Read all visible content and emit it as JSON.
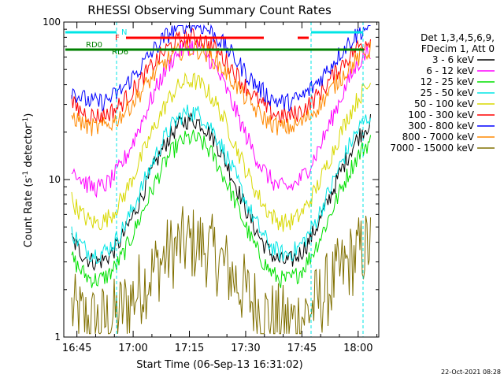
{
  "chart_data": {
    "type": "line",
    "title": "RHESSI Observing Summary Count Rates",
    "xlabel": "Start Time (06-Sep-13 16:31:02)",
    "ylabel": "Count Rate (s",
    "ylabel_sup": "-1",
    "ylabel_tail": " detector",
    "ylabel_sup2": "-1",
    "ylabel_close": ")",
    "y_scale": "log",
    "ylim": [
      1,
      100
    ],
    "y_tick_labels": [
      "1",
      "10",
      "100"
    ],
    "x_range_minutes": [
      16.5,
      90.5
    ],
    "x_ticks": [
      {
        "label": "16:45",
        "t": 45
      },
      {
        "label": "17:00",
        "t": 60
      },
      {
        "label": "17:15",
        "t": 75
      },
      {
        "label": "17:30",
        "t": 90
      },
      {
        "label": "17:45",
        "t": 105
      },
      {
        "label": "18:00",
        "t": 120
      }
    ],
    "legend_position": "right",
    "legend_header": [
      "Det 1,3,4,5,6,9,",
      "FDecim 1, Att 0"
    ],
    "series": [
      {
        "name": "3 - 6 keV",
        "color": "#000000",
        "base": 8.5
      },
      {
        "name": "6 - 12 keV",
        "color": "#ff00ff",
        "base": 25
      },
      {
        "name": "12 - 25 keV",
        "color": "#00e000",
        "base": 6.5
      },
      {
        "name": "25 - 50 keV",
        "color": "#00e5e5",
        "base": 9.5
      },
      {
        "name": "50 - 100 keV",
        "color": "#d8d800",
        "base": 15
      },
      {
        "name": "100 - 300 keV",
        "color": "#ff0000",
        "base": 45
      },
      {
        "name": "300 - 800 keV",
        "color": "#0000ff",
        "base": 55
      },
      {
        "name": "800 - 7000 keV",
        "color": "#ff8800",
        "base": 38
      },
      {
        "name": "7000 - 15000 keV",
        "color": "#807000",
        "base": 2.2
      }
    ],
    "flags": [
      {
        "label": "N",
        "color": "#00e5e5"
      },
      {
        "label": "F",
        "color": "#ff0000"
      },
      {
        "label": "RD0",
        "color": "#008000"
      },
      {
        "label": "RD6",
        "color": "#008000"
      }
    ]
  },
  "footer": {
    "timestamp": "22-Oct-2021 08:28"
  },
  "colors": {
    "background": "#ffffff",
    "axis": "#000000"
  }
}
